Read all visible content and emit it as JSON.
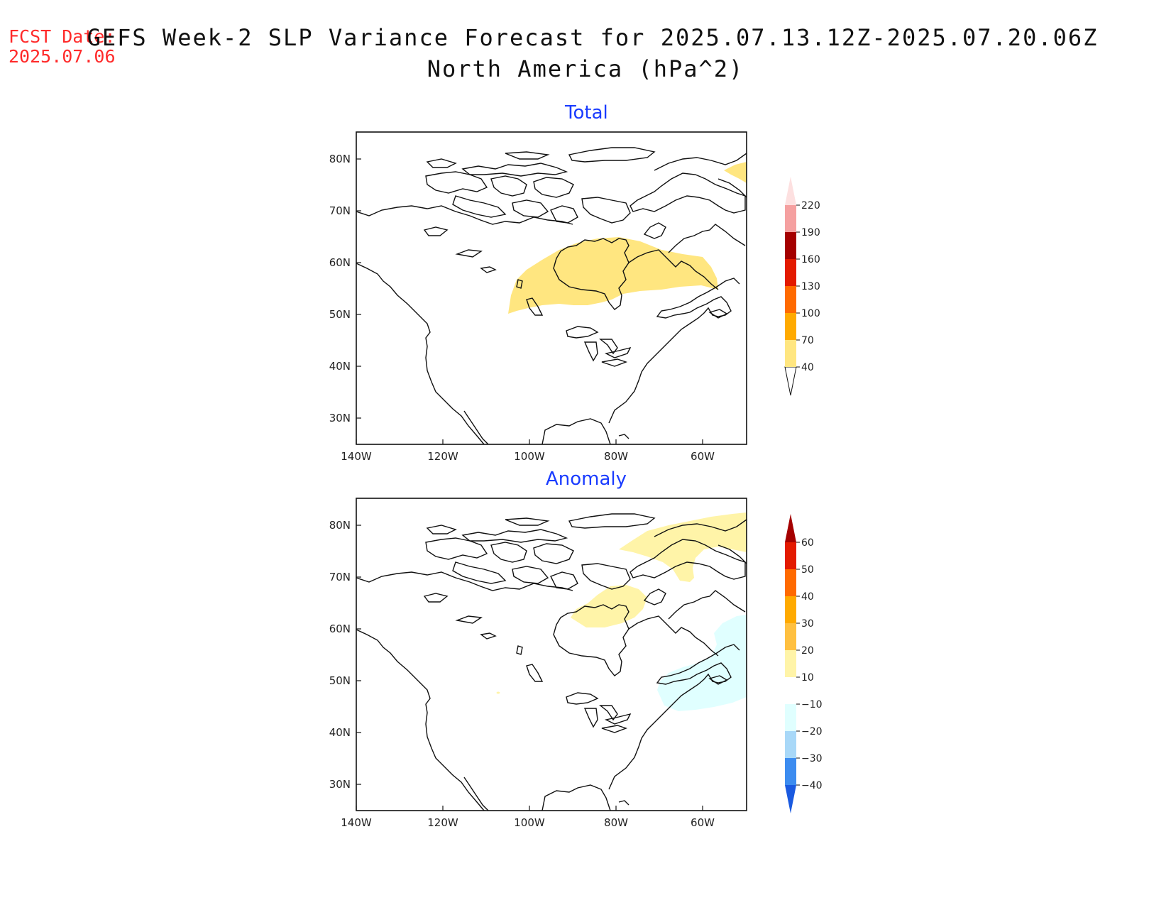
{
  "header": {
    "fcst_label": "FCST Date:",
    "fcst_date": "2025.07.06",
    "title": "GEFS Week-2 SLP Variance Forecast for 2025.07.13.12Z-2025.07.20.06Z",
    "subtitle": "North America (hPa^2)"
  },
  "panels": [
    {
      "title": "Total",
      "lat_labels": [
        "80N",
        "70N",
        "60N",
        "50N",
        "40N",
        "30N"
      ],
      "lon_labels": [
        "140W",
        "120W",
        "100W",
        "80W",
        "60W"
      ],
      "colorbar": {
        "levels": [
          "40",
          "70",
          "100",
          "130",
          "160",
          "190",
          "220"
        ],
        "colors": [
          "#ffe680",
          "#ffaa00",
          "#ff6a00",
          "#e31a00",
          "#a50000",
          "#f5a0a0",
          "#fde0e0"
        ]
      }
    },
    {
      "title": "Anomaly",
      "lat_labels": [
        "80N",
        "70N",
        "60N",
        "50N",
        "40N",
        "30N"
      ],
      "lon_labels": [
        "140W",
        "120W",
        "100W",
        "80W",
        "60W"
      ],
      "colorbar": {
        "levels": [
          "60",
          "50",
          "40",
          "30",
          "20",
          "10",
          "−10",
          "−20",
          "−30",
          "−40"
        ],
        "colors": [
          "#a50000",
          "#e31a00",
          "#ff6a00",
          "#ffaa00",
          "#ffc040",
          "#fff4a8",
          "#ffffff",
          "#e0ffff",
          "#a8d8f8",
          "#3c8cf0",
          "#1a5ae0"
        ]
      }
    }
  ],
  "colors": {
    "fcst": "#ff2a2a",
    "panel_title": "#1a3cff",
    "total_fill": "#ffe680",
    "anom_pos_fill": "#fff4a8",
    "anom_neg_fill": "#e0ffff"
  }
}
